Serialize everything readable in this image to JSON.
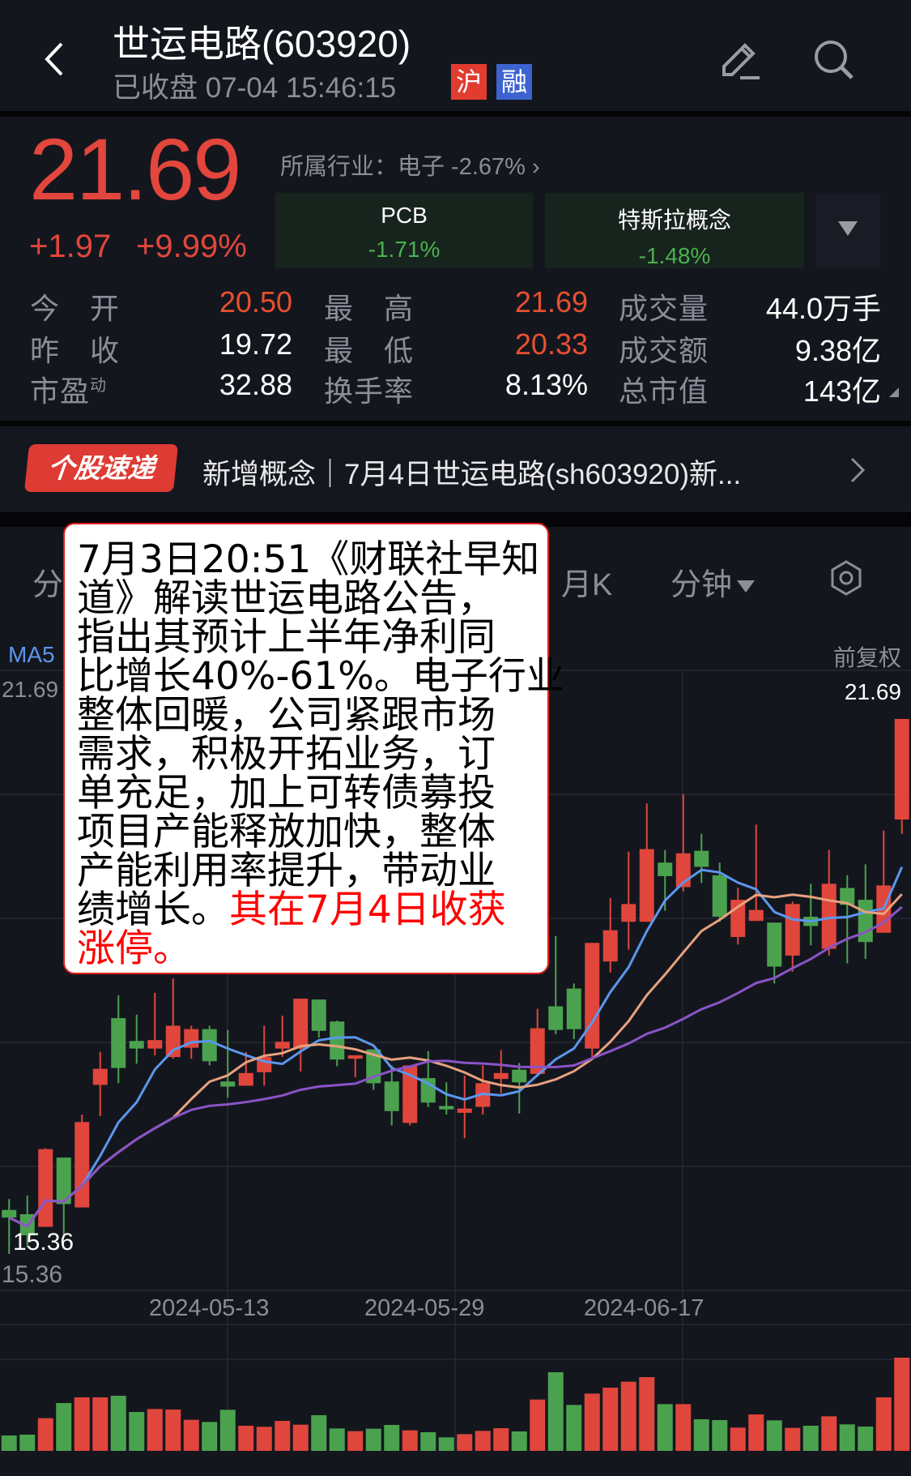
{
  "header": {
    "title": "世运电路(603920)",
    "status": "已收盘 07-04 15:46:15",
    "badge_exchange": "沪",
    "badge_margin": "融",
    "back_icon": "chevron-left-icon",
    "edit_icon": "pencil-icon",
    "search_icon": "search-icon"
  },
  "quote": {
    "price": "21.69",
    "change": "+1.97",
    "change_pct": "+9.99%",
    "industry": "所属行业：电子 -2.67%",
    "concepts": [
      {
        "name": "PCB",
        "pct": "-1.71%"
      },
      {
        "name": "特斯拉概念",
        "pct": "-1.48%"
      }
    ],
    "stats": [
      [
        {
          "label": "今　开",
          "value": "20.50",
          "color": "#e8502f"
        },
        {
          "label": "最　高",
          "value": "21.69",
          "color": "#e8502f"
        },
        {
          "label": "成交量",
          "value": "44.0万手",
          "color": "#ffffff"
        }
      ],
      [
        {
          "label": "昨　收",
          "value": "19.72",
          "color": "#ffffff"
        },
        {
          "label": "最　低",
          "value": "20.33",
          "color": "#e8502f"
        },
        {
          "label": "成交额",
          "value": "9.38亿",
          "color": "#ffffff"
        }
      ],
      [
        {
          "label": "市盈",
          "label_sup": "动",
          "value": "32.88",
          "color": "#ffffff"
        },
        {
          "label": "换手率",
          "value": "8.13%",
          "color": "#ffffff"
        },
        {
          "label": "总市值",
          "value": "143亿",
          "color": "#ffffff"
        }
      ]
    ]
  },
  "news": {
    "badge": "个股速递",
    "text": "新增概念｜7月4日世运电路(sh603920)新..."
  },
  "chart_tabs": {
    "partial_left": "分",
    "monthly": "月K",
    "minute": "分钟",
    "settings_icon": "hexagon-settings-icon"
  },
  "tooltip": {
    "lines": [
      {
        "text": "7月3日20:51《财联社早知",
        "hl": ""
      },
      {
        "text": "道》解读世运电路公告，",
        "hl": ""
      },
      {
        "text": "指出其预计上半年净利同",
        "hl": ""
      },
      {
        "text": "比增长40%-61%。电子行业",
        "hl": ""
      },
      {
        "text": "整体回暖，公司紧跟市场",
        "hl": ""
      },
      {
        "text": "需求，积极开拓业务，订",
        "hl": ""
      },
      {
        "text": "单充足，加上可转债募投",
        "hl": ""
      },
      {
        "text": "项目产能释放加快，整体",
        "hl": ""
      },
      {
        "text": "产能利用率提升，带动业",
        "hl": ""
      },
      {
        "text": "绩增长。",
        "hl": "其在7月4日收获"
      },
      {
        "text": "",
        "hl": "涨停。"
      }
    ]
  },
  "chart_data": {
    "type": "candlestick",
    "ma_label": "MA5",
    "adjust_label": "前复权",
    "axis_max_label": "21.69",
    "last_price_label": "21.69",
    "axis_min_label": "15.36",
    "low_marker_label": "15.36",
    "ylim": [
      15.36,
      21.69
    ],
    "x_tick_labels": [
      "2024-05-13",
      "2024-05-29",
      "2024-06-17"
    ],
    "colors": {
      "up": "#e0463c",
      "down": "#4ba24e",
      "ma5": "#5b97ec",
      "ma10": "#e7a27e",
      "ma20": "#8a54c6"
    },
    "ohlc": [
      [
        15.88,
        16.01,
        15.36,
        15.79
      ],
      [
        15.83,
        16.05,
        15.44,
        15.58
      ],
      [
        15.68,
        16.61,
        15.68,
        16.6
      ],
      [
        16.5,
        16.5,
        15.55,
        15.95
      ],
      [
        15.91,
        17.01,
        15.91,
        16.92
      ],
      [
        17.36,
        17.75,
        16.99,
        17.55
      ],
      [
        18.15,
        18.42,
        17.38,
        17.56
      ],
      [
        17.88,
        18.19,
        17.61,
        17.79
      ],
      [
        17.79,
        18.45,
        17.71,
        17.89
      ],
      [
        17.69,
        18.62,
        17.67,
        18.06
      ],
      [
        17.8,
        18.06,
        17.67,
        18.02
      ],
      [
        18.02,
        18.06,
        17.59,
        17.64
      ],
      [
        17.4,
        18.01,
        17.21,
        17.34
      ],
      [
        17.35,
        17.75,
        17.35,
        17.5
      ],
      [
        17.51,
        18.06,
        17.35,
        17.69
      ],
      [
        17.79,
        18.18,
        17.69,
        17.87
      ],
      [
        17.79,
        18.38,
        17.52,
        18.38
      ],
      [
        18.37,
        18.37,
        17.92,
        18.0
      ],
      [
        18.11,
        18.12,
        17.58,
        17.66
      ],
      [
        17.67,
        17.71,
        17.45,
        17.71
      ],
      [
        17.78,
        17.78,
        17.3,
        17.38
      ],
      [
        17.4,
        17.59,
        16.88,
        17.05
      ],
      [
        16.91,
        17.59,
        16.88,
        17.59
      ],
      [
        17.44,
        17.76,
        17.1,
        17.15
      ],
      [
        17.11,
        17.39,
        17.01,
        17.07
      ],
      [
        17.03,
        17.47,
        16.73,
        17.08
      ],
      [
        17.1,
        17.59,
        17.01,
        17.38
      ],
      [
        17.43,
        17.77,
        17.26,
        17.5
      ],
      [
        17.54,
        17.62,
        17.02,
        17.39
      ],
      [
        17.49,
        18.26,
        17.49,
        18.03
      ],
      [
        18.29,
        19.12,
        17.96,
        18.01
      ],
      [
        18.5,
        18.56,
        17.9,
        18.02
      ],
      [
        17.79,
        19.04,
        17.67,
        19.04
      ],
      [
        18.82,
        19.57,
        18.69,
        19.19
      ],
      [
        19.29,
        20.12,
        18.96,
        19.5
      ],
      [
        19.29,
        20.69,
        19.29,
        20.15
      ],
      [
        19.99,
        20.14,
        19.42,
        19.83
      ],
      [
        19.7,
        20.8,
        19.65,
        20.1
      ],
      [
        20.13,
        20.33,
        19.75,
        19.94
      ],
      [
        19.84,
        19.99,
        19.29,
        19.35
      ],
      [
        19.11,
        19.69,
        19.02,
        19.55
      ],
      [
        19.3,
        20.44,
        19.3,
        19.43
      ],
      [
        19.28,
        19.28,
        18.56,
        18.76
      ],
      [
        18.89,
        19.53,
        18.7,
        19.5
      ],
      [
        19.35,
        19.74,
        19.01,
        19.24
      ],
      [
        18.97,
        20.14,
        18.89,
        19.74
      ],
      [
        19.69,
        19.84,
        18.8,
        19.49
      ],
      [
        19.55,
        19.97,
        18.85,
        19.05
      ],
      [
        19.16,
        20.37,
        19.16,
        19.72
      ],
      [
        20.5,
        21.69,
        20.33,
        21.69
      ]
    ],
    "volume_relative": [
      57,
      60,
      121,
      177,
      198,
      198,
      204,
      144,
      155,
      153,
      115,
      107,
      152,
      93,
      89,
      111,
      97,
      132,
      83,
      73,
      82,
      96,
      76,
      69,
      50,
      62,
      74,
      84,
      72,
      190,
      291,
      170,
      212,
      234,
      256,
      273,
      173,
      173,
      117,
      114,
      86,
      135,
      113,
      85,
      93,
      128,
      98,
      90,
      198,
      345
    ]
  }
}
